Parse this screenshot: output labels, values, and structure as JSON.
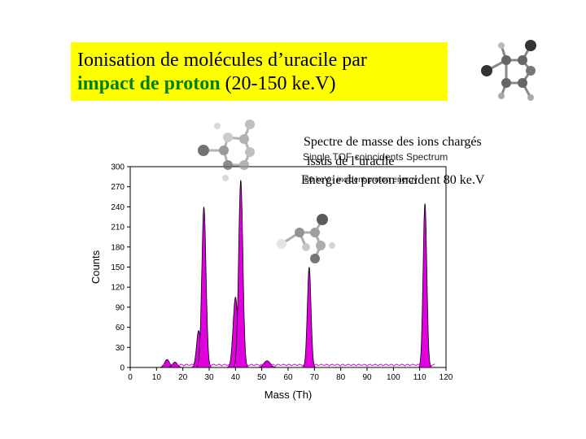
{
  "title": {
    "line1": "Ionisation de molécules d’uracile par",
    "highlight": "impact de proton",
    "rest": " (20-150 ke.V)"
  },
  "annotations": {
    "spectre_line1": "Spectre de masse des ions chargés",
    "spectre_line2": "issus de l’uracile",
    "energie": "Energie du proton incident 80 ke.V",
    "overlay_title": "Single TOF coincidents Spectrum",
    "overlay_sub": "80 keV - incident proton energy"
  },
  "colors": {
    "title_bg": "#ffff00",
    "highlight": "#008000",
    "peak_fill": "#e000e0",
    "peak_stroke": "#000000"
  },
  "icons": [
    "uracil-molecule-icon"
  ],
  "chart_data": {
    "type": "area",
    "title": "Single TOF coincidents Spectrum",
    "xlabel": "Mass (Th)",
    "ylabel": "Counts",
    "xlim": [
      0,
      120
    ],
    "ylim": [
      0,
      300
    ],
    "xticks": [
      0,
      10,
      20,
      30,
      40,
      50,
      60,
      70,
      80,
      90,
      100,
      110,
      120
    ],
    "yticks": [
      0,
      30,
      60,
      90,
      120,
      150,
      180,
      210,
      240,
      270,
      300
    ],
    "grid": false,
    "peaks": [
      {
        "mass": 14,
        "height": 12,
        "width": 0.9
      },
      {
        "mass": 17,
        "height": 8,
        "width": 0.9
      },
      {
        "mass": 26,
        "height": 55,
        "width": 0.8
      },
      {
        "mass": 28,
        "height": 240,
        "width": 0.8
      },
      {
        "mass": 40,
        "height": 105,
        "width": 0.9
      },
      {
        "mass": 42,
        "height": 280,
        "width": 0.8
      },
      {
        "mass": 52,
        "height": 10,
        "width": 1.2
      },
      {
        "mass": 68,
        "height": 150,
        "width": 0.7
      },
      {
        "mass": 112,
        "height": 245,
        "width": 0.7
      }
    ]
  }
}
